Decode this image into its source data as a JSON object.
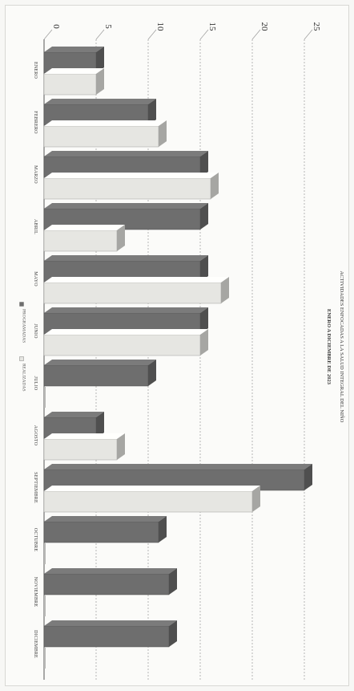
{
  "chart_data": {
    "type": "bar",
    "orientation": "horizontal",
    "title": "ACTIVIDADES ENFOCADAS A LA SALUD INTEGRAL DEL NIÑO",
    "subtitle": "ENERO A DICIEMBRE DE 2023",
    "categories": [
      "ENERO",
      "FEBRERO",
      "MARZO",
      "ABRIL",
      "MAYO",
      "JUNIO",
      "JULIO",
      "AGOSTO",
      "SEPTIEMBRE",
      "OCTUBRE",
      "NOVIEMBRE",
      "DICIEMBRE"
    ],
    "series": [
      {
        "name": "PROGRAMADAS",
        "values": [
          5,
          10,
          15,
          15,
          15,
          15,
          10,
          5,
          25,
          11,
          12,
          12
        ],
        "color": "#6e6e6e"
      },
      {
        "name": "REALIZADAS",
        "values": [
          5,
          11,
          16,
          7,
          17,
          15,
          0,
          7,
          20,
          0,
          0,
          0
        ],
        "color": "#e6e6e2"
      }
    ],
    "xlim": [
      0,
      25
    ],
    "ticks": [
      0,
      5,
      10,
      15,
      20,
      25
    ],
    "tick_labels": [
      "0",
      "5",
      "10",
      "15",
      "20",
      "25"
    ],
    "grid": true,
    "legend_position": "bottom",
    "style": "3d"
  }
}
